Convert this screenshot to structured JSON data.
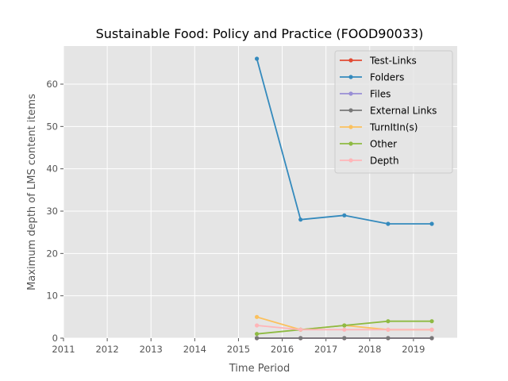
{
  "chart_data": {
    "type": "line",
    "title": "Sustainable Food: Policy and Practice (FOOD90033)",
    "xlabel": "Time Period",
    "ylabel": "Maximum depth of LMS content items",
    "xlim": [
      2011,
      2020
    ],
    "ylim": [
      0,
      69
    ],
    "xticks": [
      2011,
      2012,
      2013,
      2014,
      2015,
      2016,
      2017,
      2018,
      2019
    ],
    "yticks": [
      0,
      10,
      20,
      30,
      40,
      50,
      60
    ],
    "grid": true,
    "legend_position": "top-right",
    "x": [
      2015.42,
      2016.42,
      2017.42,
      2018.42,
      2019.42
    ],
    "series": [
      {
        "name": "Test-Links",
        "color": "#E24A33",
        "values": [
          0,
          0,
          0,
          0,
          0
        ]
      },
      {
        "name": "Folders",
        "color": "#348ABD",
        "values": [
          66,
          28,
          29,
          27,
          27
        ]
      },
      {
        "name": "Files",
        "color": "#988ED5",
        "values": [
          0,
          0,
          0,
          0,
          0
        ]
      },
      {
        "name": "External Links",
        "color": "#777777",
        "values": [
          0,
          0,
          0,
          0,
          0
        ]
      },
      {
        "name": "TurnItIn(s)",
        "color": "#FBC15E",
        "values": [
          5,
          2,
          3,
          2,
          2
        ]
      },
      {
        "name": "Other",
        "color": "#8EBA42",
        "values": [
          1,
          2,
          3,
          4,
          4
        ]
      },
      {
        "name": "Depth",
        "color": "#FFB5B8",
        "values": [
          3,
          2,
          2,
          2,
          2
        ]
      }
    ]
  }
}
